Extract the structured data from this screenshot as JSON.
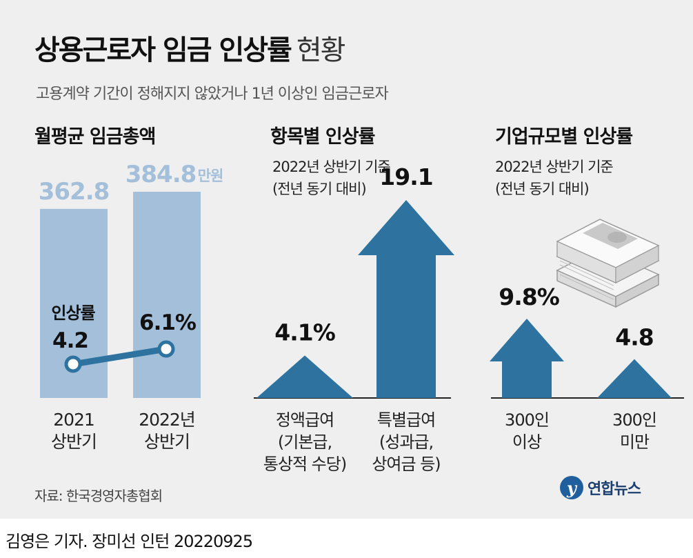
{
  "header": {
    "title": "상용근로자 임금 인상률",
    "title_suffix": "현황",
    "subtitle": "고용계약 기간이 정해지지 않았거나 1년 이상인 임금근로자"
  },
  "colors": {
    "bar_light": "#a3bfd9",
    "arrow_blue": "#2e73a0",
    "line_blue": "#2e73a0",
    "background": "#efefef"
  },
  "chart_data": [
    {
      "type": "bar",
      "title": "월평균 임금총액",
      "categories": [
        "2021\n상반기",
        "2022년\n상반기"
      ],
      "values": [
        362.8,
        384.8
      ],
      "value_labels": [
        "362.8",
        "384.8"
      ],
      "unit": "만원",
      "overlay_line": {
        "label": "인상률",
        "values": [
          4.2,
          6.1
        ],
        "value_labels": [
          "4.2",
          "6.1%"
        ]
      }
    },
    {
      "type": "bar",
      "title": "항목별 인상률",
      "basis_line1": "2022년 상반기 기준",
      "basis_line2": "(전년 동기 대비)",
      "categories": [
        "정액급여\n(기본급,\n통상적 수당)",
        "특별급여\n(성과급,\n상여금 등)"
      ],
      "values": [
        4.1,
        19.1
      ],
      "value_labels": [
        "4.1%",
        "19.1"
      ]
    },
    {
      "type": "bar",
      "title": "기업규모별 인상률",
      "basis_line1": "2022년 상반기 기준",
      "basis_line2": "(전년 동기 대비)",
      "categories": [
        "300인\n이상",
        "300인\n미만"
      ],
      "values": [
        9.8,
        4.8
      ],
      "value_labels": [
        "9.8%",
        "4.8"
      ],
      "icon": "money-stack-icon"
    }
  ],
  "footer": {
    "source": "자료: 한국경영자총협회",
    "logo_text": "연합뉴스",
    "logo_mark": "y",
    "credit": "김영은 기자. 장미선 인턴  20220925"
  }
}
